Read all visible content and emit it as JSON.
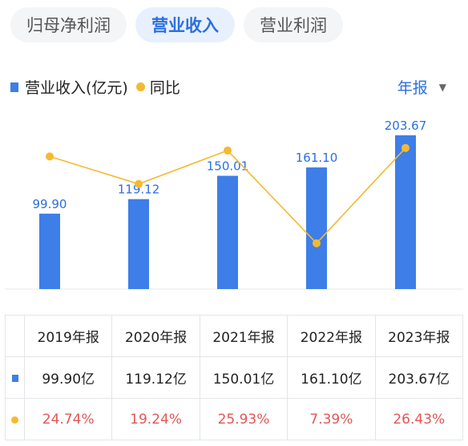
{
  "tabs": [
    {
      "label": "归母净利润",
      "active": false
    },
    {
      "label": "营业收入",
      "active": true
    },
    {
      "label": "营业利润",
      "active": false
    }
  ],
  "legend": {
    "bar_label": "营业收入(亿元)",
    "line_label": "同比"
  },
  "period_selector": {
    "label": "年报"
  },
  "colors": {
    "bar": "#3d7ee8",
    "line": "#f5b931",
    "accent": "#2a6fe0",
    "negative_text": "#e25656"
  },
  "chart_data": {
    "type": "bar",
    "categories": [
      "2019年报",
      "2020年报",
      "2021年报",
      "2022年报",
      "2023年报"
    ],
    "series": [
      {
        "name": "营业收入(亿元)",
        "type": "bar",
        "values": [
          99.9,
          119.12,
          150.01,
          161.1,
          203.67
        ],
        "labels": [
          "99.90",
          "119.12",
          "150.01",
          "161.10",
          "203.67"
        ]
      },
      {
        "name": "同比",
        "type": "line",
        "values": [
          24.74,
          19.24,
          25.93,
          7.39,
          26.43
        ]
      }
    ],
    "title": "",
    "xlabel": "",
    "ylabel": "",
    "grid": false,
    "legend_position": "top-left"
  },
  "table": {
    "headers": [
      "2019年报",
      "2020年报",
      "2021年报",
      "2022年报",
      "2023年报"
    ],
    "revenue": [
      "99.90亿",
      "119.12亿",
      "150.01亿",
      "161.10亿",
      "203.67亿"
    ],
    "yoy": [
      "24.74%",
      "19.24%",
      "25.93%",
      "7.39%",
      "26.43%"
    ]
  }
}
